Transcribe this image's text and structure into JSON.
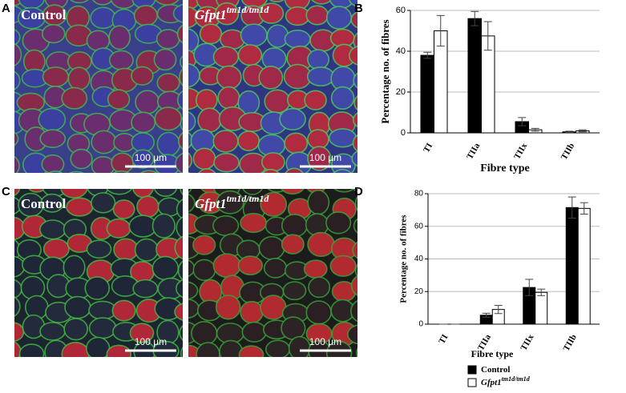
{
  "panels": {
    "labels": [
      "A",
      "B",
      "C",
      "D"
    ]
  },
  "images": [
    {
      "label": "Control",
      "scale_bar": "100 µm"
    },
    {
      "label": "Gfpt1",
      "label_superscript": "tm1d/tm1d",
      "scale_bar": "100 µm"
    },
    {
      "label": "Control",
      "scale_bar": "100 µm"
    },
    {
      "label": "Gfpt1",
      "label_superscript": "tm1d/tm1d",
      "scale_bar": "100 µm"
    }
  ],
  "chart_data": [
    {
      "type": "bar",
      "y_label": "Percentage no. of fibres",
      "x_label": "Fibre type",
      "categories": [
        "TI",
        "TIIa",
        "TIIx",
        "TIIb"
      ],
      "series": [
        {
          "color": "#000000",
          "values": [
            38,
            56,
            5.5,
            0.5
          ],
          "errors": [
            1.5,
            3.5,
            2,
            0.3
          ]
        },
        {
          "color": "#ffffff",
          "values": [
            50,
            47.5,
            1.5,
            1
          ],
          "errors": [
            7.5,
            7,
            0.7,
            0.5
          ]
        }
      ],
      "ylim": [
        0,
        60
      ],
      "yticks": [
        0,
        20,
        40,
        60
      ],
      "grid": true
    },
    {
      "type": "bar",
      "y_label": "Percentage no. of fibres",
      "x_label": "Fibre type",
      "categories": [
        "TI",
        "TIIa",
        "TIIx",
        "TIIb"
      ],
      "series": [
        {
          "name": "Control",
          "color": "#000000",
          "values": [
            0,
            5.5,
            22.5,
            71.5
          ],
          "errors": [
            0,
            1.2,
            5,
            6.5
          ]
        },
        {
          "name": "Gfpt1",
          "name_superscript": "tm1d/tm1d",
          "color": "#ffffff",
          "values": [
            0,
            9,
            19.5,
            71
          ],
          "errors": [
            0,
            2.5,
            2,
            3.5
          ]
        }
      ],
      "ylim": [
        0,
        80
      ],
      "yticks": [
        0,
        20,
        40,
        60,
        80
      ],
      "grid": true,
      "legend": "bottom"
    }
  ]
}
